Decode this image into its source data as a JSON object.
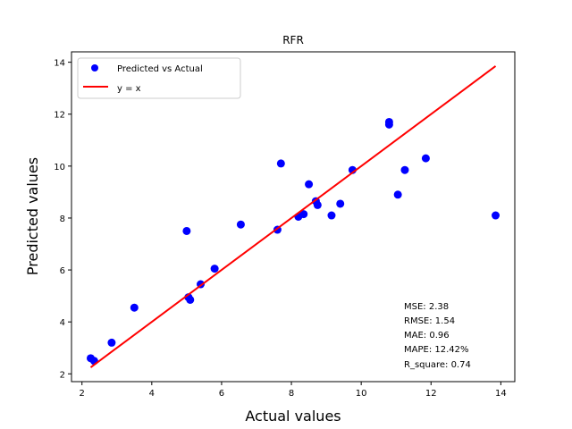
{
  "chart_data": {
    "type": "scatter",
    "title": "RFR",
    "xlabel": "Actual values",
    "ylabel": "Predicted values",
    "xlim": [
      1.7,
      14.4
    ],
    "ylim": [
      1.7,
      14.4
    ],
    "xticks": [
      2,
      4,
      6,
      8,
      10,
      12,
      14
    ],
    "yticks": [
      2,
      4,
      6,
      8,
      10,
      12,
      14
    ],
    "grid": false,
    "legend_position": "top-left",
    "series": [
      {
        "name": "Predicted vs Actual",
        "kind": "scatter",
        "color": "#0000ff",
        "points": [
          [
            2.25,
            2.6
          ],
          [
            2.35,
            2.5
          ],
          [
            2.85,
            3.2
          ],
          [
            3.5,
            4.55
          ],
          [
            5.0,
            7.5
          ],
          [
            5.05,
            4.95
          ],
          [
            5.1,
            4.85
          ],
          [
            5.4,
            5.45
          ],
          [
            5.8,
            6.05
          ],
          [
            6.55,
            7.75
          ],
          [
            7.6,
            7.55
          ],
          [
            7.7,
            10.1
          ],
          [
            8.2,
            8.05
          ],
          [
            8.35,
            8.15
          ],
          [
            8.5,
            9.3
          ],
          [
            8.7,
            8.65
          ],
          [
            8.75,
            8.5
          ],
          [
            9.15,
            8.1
          ],
          [
            9.4,
            8.55
          ],
          [
            9.75,
            9.85
          ],
          [
            10.8,
            11.7
          ],
          [
            10.8,
            11.6
          ],
          [
            11.05,
            8.9
          ],
          [
            11.25,
            9.85
          ],
          [
            11.85,
            10.3
          ],
          [
            13.85,
            8.1
          ]
        ]
      },
      {
        "name": "y = x",
        "kind": "line",
        "color": "#ff0000",
        "points": [
          [
            2.25,
            2.25
          ],
          [
            13.85,
            13.85
          ]
        ]
      }
    ],
    "metrics": [
      "MSE: 2.38",
      "RMSE: 1.54",
      "MAE: 0.96",
      "MAPE: 12.42%",
      "R_square: 0.74"
    ]
  }
}
